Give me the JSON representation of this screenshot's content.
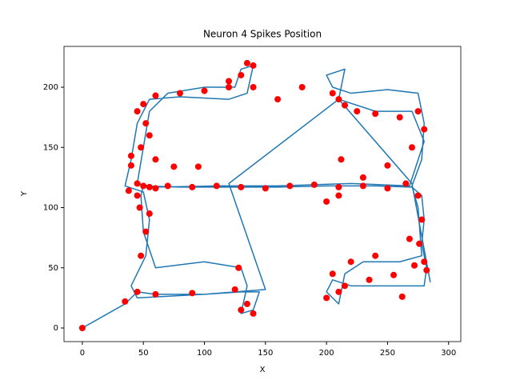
{
  "chart_data": {
    "type": "line",
    "title": "Neuron 4 Spikes Position",
    "xlabel": "X",
    "ylabel": "Y",
    "xlim": [
      -15,
      310
    ],
    "ylim": [
      -11.3,
      233.9
    ],
    "xticks": [
      0,
      50,
      100,
      150,
      200,
      250,
      300
    ],
    "yticks": [
      0,
      50,
      100,
      150,
      200
    ],
    "series": [
      {
        "type": "line",
        "color": "#1f77b4",
        "x": [
          0,
          35,
          45,
          60,
          100,
          130,
          145,
          140,
          130,
          135,
          130,
          100,
          60,
          55,
          50,
          48,
          50,
          80,
          120,
          160,
          200,
          240,
          270,
          278,
          280,
          278,
          282,
          280,
          260,
          220,
          205,
          200,
          210,
          215,
          230,
          260,
          278,
          275,
          270,
          278,
          280,
          275,
          250,
          220,
          205,
          200,
          215,
          210,
          240,
          270,
          280,
          268,
          220,
          160,
          110,
          60,
          45,
          50,
          55,
          70,
          100,
          125,
          130,
          140,
          135,
          120,
          80,
          55,
          45,
          40,
          35,
          50,
          55,
          52,
          40,
          45,
          100,
          150,
          120,
          210,
          270,
          285
        ],
        "values": [
          0,
          20,
          30,
          28,
          28,
          30,
          30,
          15,
          12,
          35,
          50,
          55,
          50,
          65,
          80,
          110,
          118,
          117,
          117,
          117,
          118,
          118,
          117,
          110,
          90,
          70,
          50,
          35,
          35,
          35,
          40,
          30,
          20,
          45,
          55,
          55,
          60,
          100,
          118,
          140,
          170,
          195,
          198,
          195,
          200,
          210,
          215,
          190,
          180,
          180,
          155,
          118,
          120,
          118,
          118,
          117,
          120,
          150,
          180,
          195,
          200,
          200,
          215,
          218,
          195,
          190,
          192,
          190,
          170,
          140,
          118,
          113,
          90,
          60,
          35,
          25,
          28,
          32,
          120,
          190,
          120,
          38
        ]
      },
      {
        "type": "scatter",
        "color": "#ff0000",
        "x": [
          0,
          35,
          45,
          60,
          90,
          125,
          135,
          140,
          130,
          128,
          48,
          52,
          55,
          47,
          45,
          50,
          40,
          38,
          45,
          55,
          60,
          70,
          90,
          110,
          130,
          150,
          170,
          190,
          210,
          230,
          250,
          265,
          275,
          278,
          276,
          280,
          282,
          272,
          255,
          235,
          215,
          205,
          210,
          200,
          220,
          240,
          205,
          210,
          215,
          225,
          240,
          260,
          275,
          280,
          270,
          250,
          230,
          210,
          200,
          180,
          160,
          140,
          120,
          100,
          80,
          60,
          50,
          55,
          60,
          75,
          95,
          120,
          130,
          140,
          135,
          40,
          48,
          52,
          45,
          262,
          268,
          212
        ],
        "values": [
          0,
          22,
          30,
          28,
          29,
          32,
          20,
          12,
          15,
          50,
          60,
          80,
          95,
          100,
          110,
          118,
          135,
          114,
          120,
          117,
          116,
          118,
          117,
          118,
          117,
          116,
          118,
          119,
          117,
          118,
          116,
          120,
          110,
          90,
          70,
          55,
          48,
          52,
          44,
          40,
          35,
          45,
          30,
          25,
          55,
          60,
          195,
          190,
          185,
          180,
          178,
          175,
          180,
          165,
          150,
          135,
          125,
          110,
          105,
          200,
          190,
          200,
          205,
          197,
          195,
          193,
          186,
          160,
          140,
          134,
          134,
          200,
          210,
          218,
          220,
          143,
          150,
          170,
          180,
          26,
          74,
          140
        ]
      }
    ]
  }
}
